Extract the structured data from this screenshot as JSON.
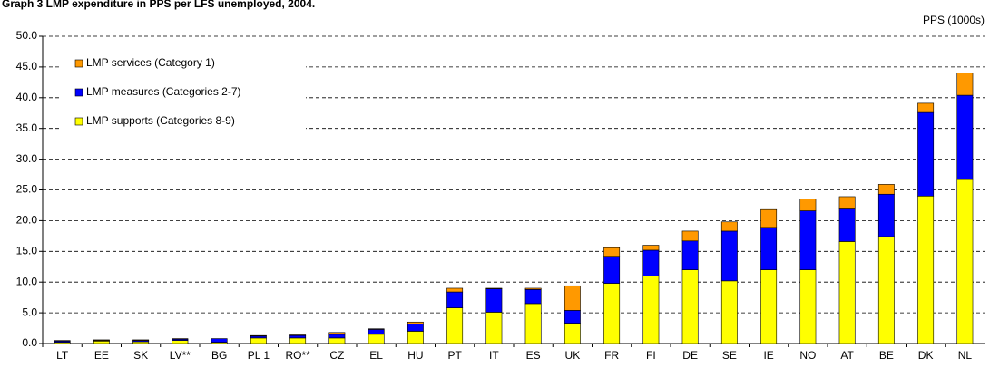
{
  "chart_data": {
    "type": "stacked_bar",
    "title": "Graph 3 LMP expenditure in PPS per LFS unemployed, 2004.",
    "y_axis_label": "PPS (1000s)",
    "categories": [
      "LT",
      "EE",
      "SK",
      "LV**",
      "BG",
      "PL 1",
      "RO**",
      "CZ",
      "EL",
      "HU",
      "PT",
      "IT",
      "ES",
      "UK",
      "FR",
      "FI",
      "DE",
      "SE",
      "IE",
      "NO",
      "AT",
      "BE",
      "DK",
      "NL"
    ],
    "series": [
      {
        "name": "LMP supports (Categories 8-9)",
        "color": "#ffff00",
        "values": [
          0.2,
          0.4,
          0.3,
          0.5,
          0.2,
          0.9,
          0.9,
          0.9,
          1.5,
          2.0,
          5.8,
          5.1,
          6.5,
          3.3,
          9.8,
          11.0,
          12.0,
          10.2,
          12.0,
          12.0,
          16.6,
          17.4,
          24.0,
          26.7
        ]
      },
      {
        "name": "LMP measures (Categories 2-7)",
        "color": "#0000ff",
        "values": [
          0.2,
          0.1,
          0.2,
          0.2,
          0.6,
          0.3,
          0.4,
          0.6,
          0.8,
          1.2,
          2.6,
          3.8,
          2.3,
          2.1,
          4.4,
          4.2,
          4.7,
          8.1,
          6.9,
          9.6,
          5.3,
          6.9,
          13.6,
          13.7
        ]
      },
      {
        "name": "LMP services (Category 1)",
        "color": "#ff9900",
        "values": [
          0.1,
          0.1,
          0.1,
          0.1,
          0.0,
          0.1,
          0.1,
          0.3,
          0.1,
          0.3,
          0.6,
          0.1,
          0.2,
          4.0,
          1.4,
          0.8,
          1.6,
          1.5,
          2.9,
          1.9,
          2.0,
          1.6,
          1.5,
          3.6
        ]
      }
    ],
    "ylim": [
      0,
      50
    ],
    "yticks": [
      {
        "value": 0,
        "label": "0.0"
      },
      {
        "value": 5,
        "label": "5.0"
      },
      {
        "value": 10,
        "label": "10.0"
      },
      {
        "value": 15,
        "label": "15.0"
      },
      {
        "value": 20,
        "label": "20.0"
      },
      {
        "value": 25,
        "label": "25.0"
      },
      {
        "value": 30,
        "label": "30.0"
      },
      {
        "value": 35,
        "label": "35.0"
      },
      {
        "value": 40,
        "label": "40.0"
      },
      {
        "value": 45,
        "label": "45.0"
      },
      {
        "value": 50,
        "label": "50.0"
      }
    ],
    "grid": true,
    "legend": "upper left"
  }
}
